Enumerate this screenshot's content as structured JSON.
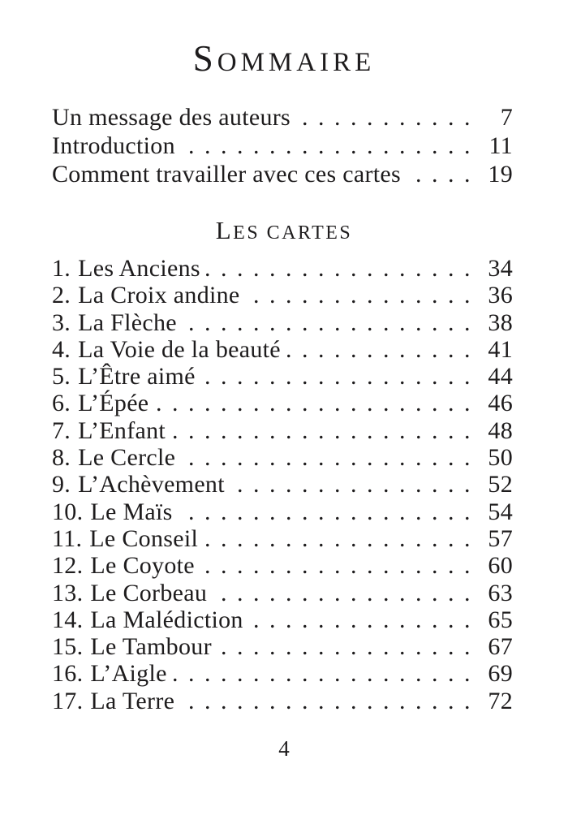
{
  "colors": {
    "text": "#1e1c1d",
    "background": "#ffffff"
  },
  "header": {
    "title_initial": "S",
    "title_rest": "OMMAIRE"
  },
  "front_matter": [
    {
      "label": "Un message des auteurs",
      "page": "7"
    },
    {
      "label": "Introduction",
      "page": "11"
    },
    {
      "label": "Comment travailler avec ces cartes",
      "page": "19"
    }
  ],
  "section": {
    "heading_initial": "L",
    "heading_rest": "ES CARTES"
  },
  "cards": [
    {
      "num": "1.",
      "label": "Les Anciens",
      "page": "34"
    },
    {
      "num": "2.",
      "label": "La Croix andine",
      "page": "36"
    },
    {
      "num": "3.",
      "label": "La Flèche",
      "page": "38"
    },
    {
      "num": "4.",
      "label": "La Voie de la beauté",
      "page": "41"
    },
    {
      "num": "5.",
      "label": "L’Être aimé",
      "page": "44"
    },
    {
      "num": "6.",
      "label": "L’Épée",
      "page": "46"
    },
    {
      "num": "7.",
      "label": "L’Enfant",
      "page": "48"
    },
    {
      "num": "8.",
      "label": "Le Cercle",
      "page": "50"
    },
    {
      "num": "9.",
      "label": "L’Achèvement",
      "page": "52"
    },
    {
      "num": "10.",
      "label": "Le Maïs",
      "page": "54"
    },
    {
      "num": "11.",
      "label": "Le Conseil",
      "page": "57"
    },
    {
      "num": "12.",
      "label": "Le Coyote",
      "page": "60"
    },
    {
      "num": "13.",
      "label": "Le Corbeau",
      "page": "63"
    },
    {
      "num": "14.",
      "label": "La Malédiction",
      "page": "65"
    },
    {
      "num": "15.",
      "label": "Le Tambour",
      "page": "67"
    },
    {
      "num": "16.",
      "label": "L’Aigle",
      "page": "69"
    },
    {
      "num": "17.",
      "label": "La Terre",
      "page": "72"
    }
  ],
  "footer": {
    "page_number": "4"
  }
}
